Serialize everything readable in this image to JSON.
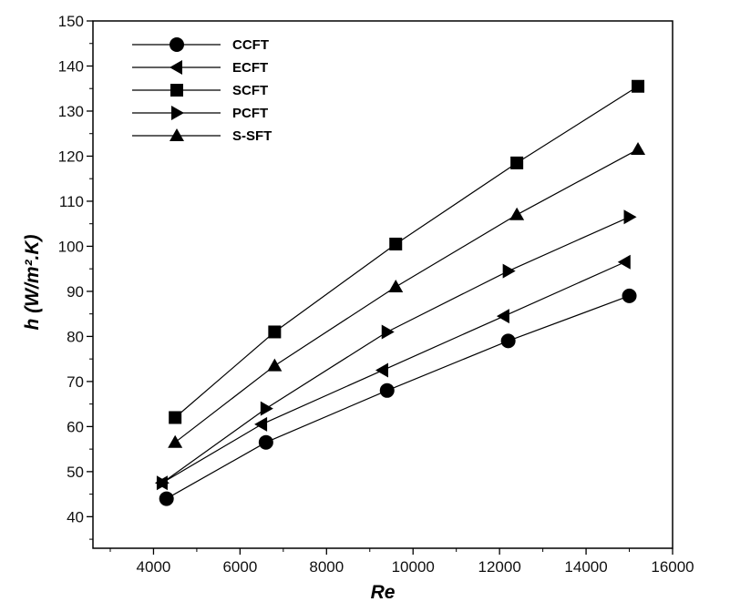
{
  "chart_data": {
    "type": "line",
    "title": "",
    "xlabel": "Re",
    "ylabel": "h (W/m².K)",
    "xlim": [
      2600,
      16000
    ],
    "ylim": [
      33,
      150
    ],
    "xticks": [
      4000,
      6000,
      8000,
      10000,
      12000,
      14000,
      16000
    ],
    "yticks": [
      40,
      50,
      60,
      70,
      80,
      90,
      100,
      110,
      120,
      130,
      140,
      150
    ],
    "grid": false,
    "legend_position": "top-left",
    "series": [
      {
        "name": "CCFT",
        "marker": "circle",
        "color": "#000000",
        "x": [
          4300,
          6600,
          9400,
          12200,
          15000
        ],
        "y": [
          44,
          56.5,
          68,
          79,
          89
        ]
      },
      {
        "name": "ECFT",
        "marker": "triangle-left",
        "color": "#000000",
        "x": [
          4200,
          6500,
          9300,
          12100,
          14900
        ],
        "y": [
          47.5,
          60.5,
          72.5,
          84.5,
          96.5
        ]
      },
      {
        "name": "SCFT",
        "marker": "square",
        "color": "#000000",
        "x": [
          4500,
          6800,
          9600,
          12400,
          15200
        ],
        "y": [
          62,
          81,
          100.5,
          118.5,
          135.5
        ]
      },
      {
        "name": "PCFT",
        "marker": "triangle-right",
        "color": "#000000",
        "x": [
          4200,
          6600,
          9400,
          12200,
          15000
        ],
        "y": [
          47.5,
          64,
          81,
          94.5,
          106.5
        ]
      },
      {
        "name": "S-SFT",
        "marker": "triangle-up",
        "color": "#000000",
        "x": [
          4500,
          6800,
          9600,
          12400,
          15200
        ],
        "y": [
          56.5,
          73.5,
          91,
          107,
          121.5
        ]
      }
    ]
  }
}
